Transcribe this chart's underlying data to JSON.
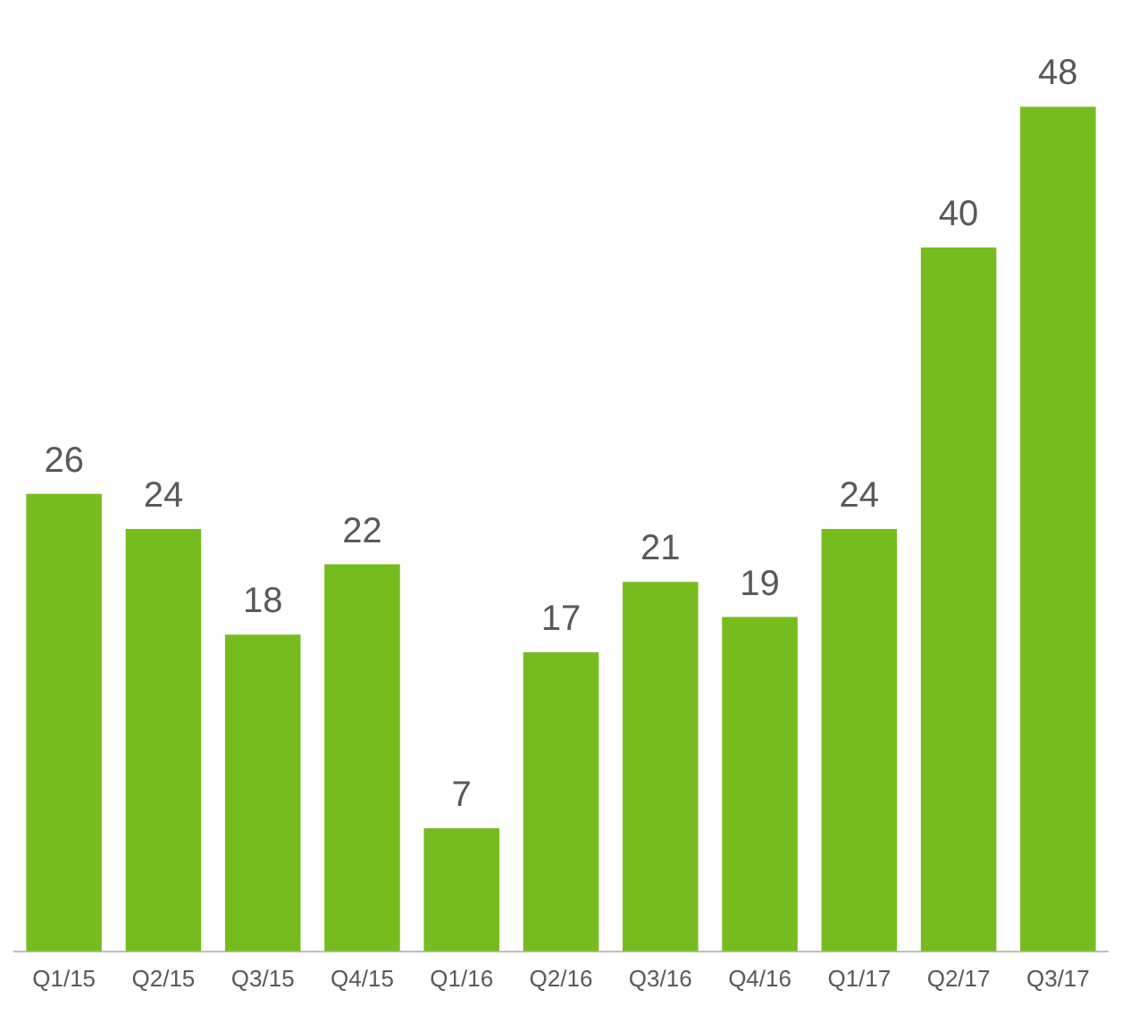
{
  "chart_data": {
    "type": "bar",
    "categories": [
      "Q1/15",
      "Q2/15",
      "Q3/15",
      "Q4/15",
      "Q1/16",
      "Q2/16",
      "Q3/16",
      "Q4/16",
      "Q1/17",
      "Q2/17",
      "Q3/17"
    ],
    "values": [
      26,
      24,
      18,
      22,
      7,
      17,
      21,
      19,
      24,
      40,
      48
    ],
    "color": "#77bc1f",
    "data_labels": true,
    "grid": false,
    "legend": false,
    "tick_labels": "x"
  }
}
